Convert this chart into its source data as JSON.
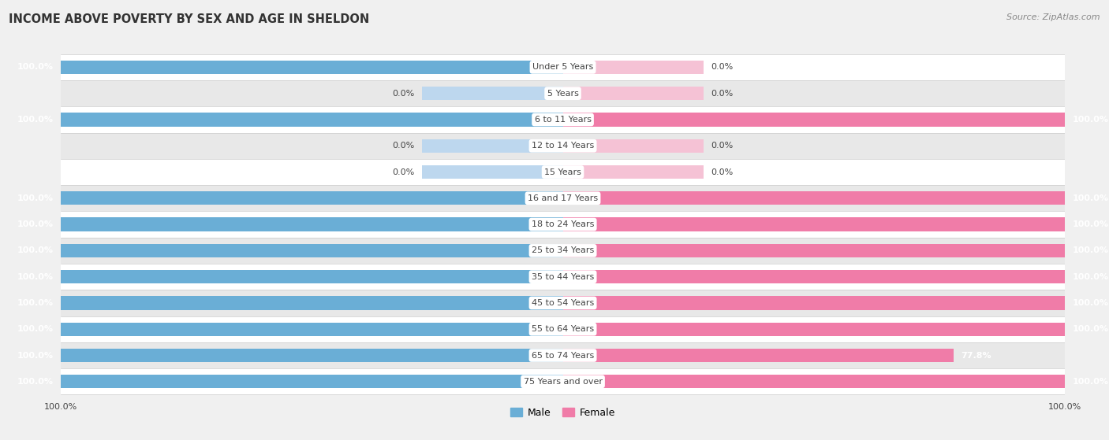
{
  "title": "INCOME ABOVE POVERTY BY SEX AND AGE IN SHELDON",
  "source": "Source: ZipAtlas.com",
  "categories": [
    "Under 5 Years",
    "5 Years",
    "6 to 11 Years",
    "12 to 14 Years",
    "15 Years",
    "16 and 17 Years",
    "18 to 24 Years",
    "25 to 34 Years",
    "35 to 44 Years",
    "45 to 54 Years",
    "55 to 64 Years",
    "65 to 74 Years",
    "75 Years and over"
  ],
  "male": [
    100.0,
    0.0,
    100.0,
    0.0,
    0.0,
    100.0,
    100.0,
    100.0,
    100.0,
    100.0,
    100.0,
    100.0,
    100.0
  ],
  "female": [
    0.0,
    0.0,
    100.0,
    0.0,
    0.0,
    100.0,
    100.0,
    100.0,
    100.0,
    100.0,
    100.0,
    77.8,
    100.0
  ],
  "male_color": "#6aaed6",
  "female_color": "#f07ca8",
  "male_light_color": "#bdd7ee",
  "female_light_color": "#f5c2d5",
  "row_bg_white": "#ffffff",
  "row_bg_gray": "#e8e8e8",
  "label_bg": "#ffffff",
  "text_dark": "#444444",
  "text_light": "#888888"
}
